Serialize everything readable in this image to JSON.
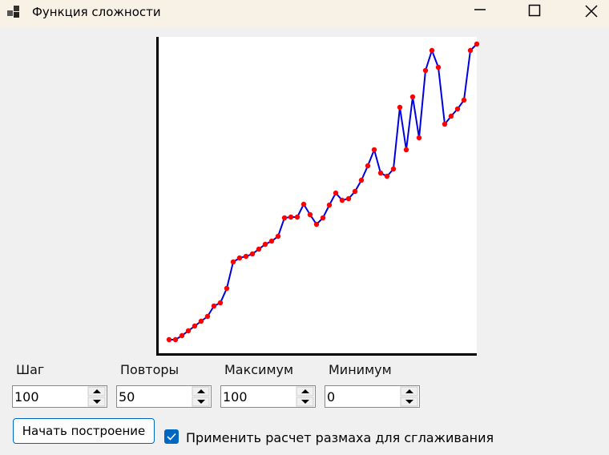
{
  "window": {
    "title": "Функция сложности"
  },
  "chart_data": {
    "type": "line",
    "line_color": "#0000e0",
    "marker_color": "#ff0000",
    "x": [
      1,
      2,
      3,
      4,
      5,
      6,
      7,
      8,
      9,
      10,
      11,
      12,
      13,
      14,
      15,
      16,
      17,
      18,
      19,
      20,
      21,
      22,
      23,
      24,
      25,
      26,
      27,
      28,
      29,
      30,
      31,
      32,
      33,
      34,
      35,
      36,
      37,
      38,
      39,
      40,
      41,
      42,
      43,
      44,
      45,
      46,
      47,
      48,
      49
    ],
    "values": [
      17,
      17,
      22,
      28,
      34,
      40,
      46,
      59,
      63,
      81,
      114,
      119,
      121,
      124,
      130,
      136,
      140,
      146,
      169,
      170,
      170,
      186,
      173,
      161,
      169,
      185,
      200,
      191,
      193,
      202,
      216,
      234,
      254,
      225,
      221,
      230,
      307,
      254,
      320,
      269,
      353,
      378,
      357,
      286,
      296,
      305,
      316,
      378,
      386
    ],
    "xlim": [
      -0.75,
      49
    ],
    "ylim": [
      0,
      395
    ]
  },
  "controls": {
    "fields": [
      {
        "label": "Шаг",
        "value": 100
      },
      {
        "label": "Повторы",
        "value": 50
      },
      {
        "label": "Максимум",
        "value": 100
      },
      {
        "label": "Минимум",
        "value": 0
      }
    ],
    "button": "Начать построение",
    "checkbox": {
      "label": "Применить расчет размаха для сглаживания",
      "checked": true
    }
  }
}
